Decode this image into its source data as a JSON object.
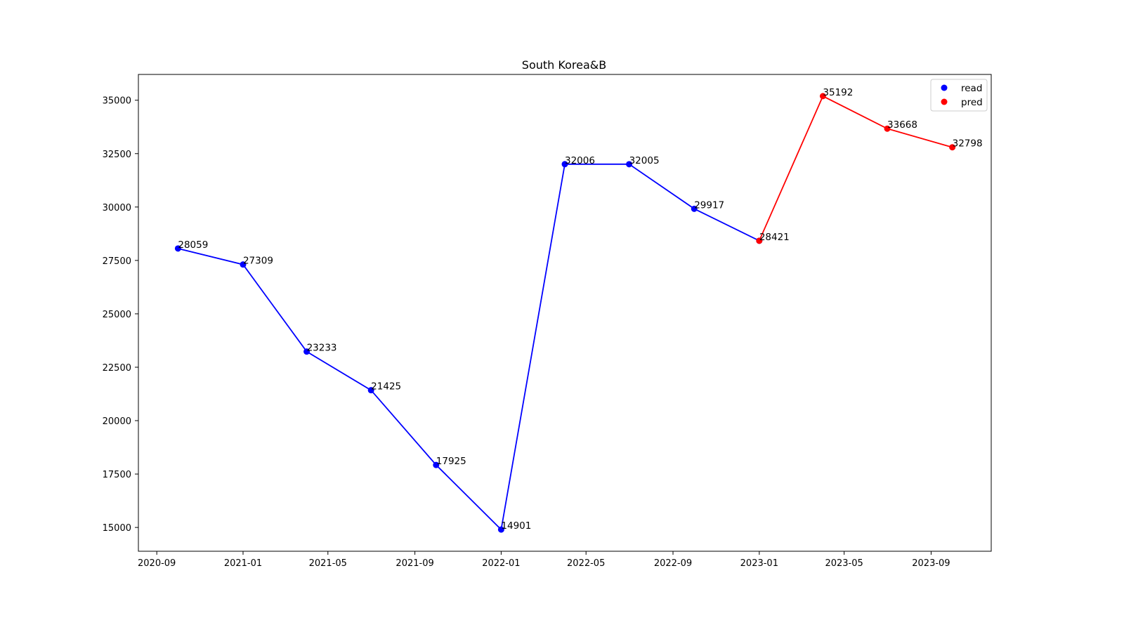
{
  "chart_data": {
    "type": "line",
    "title": "South Korea&B",
    "xlabel": "",
    "ylabel": "",
    "x_ticks": [
      "2020-09",
      "2021-01",
      "2021-05",
      "2021-09",
      "2022-01",
      "2022-05",
      "2022-09",
      "2023-01",
      "2023-05",
      "2023-09"
    ],
    "y_ticks": [
      15000,
      17500,
      20000,
      22500,
      25000,
      27500,
      30000,
      32500,
      35000
    ],
    "xlim": [
      "2020-08-06",
      "2023-11-25"
    ],
    "ylim": [
      13886,
      36207
    ],
    "grid": false,
    "legend_position": "top-right",
    "series": [
      {
        "name": "read",
        "color": "#0000ff",
        "x": [
          "2020-10-01",
          "2021-01-01",
          "2021-04-01",
          "2021-07-01",
          "2021-10-01",
          "2022-01-01",
          "2022-04-01",
          "2022-07-01",
          "2022-10-01",
          "2023-01-01"
        ],
        "values": [
          28059,
          27309,
          23233,
          21425,
          17925,
          14901,
          32006,
          32005,
          29917,
          28421
        ]
      },
      {
        "name": "pred",
        "color": "#ff0000",
        "x": [
          "2023-01-01",
          "2023-04-01",
          "2023-07-01",
          "2023-10-01"
        ],
        "values": [
          28421,
          35192,
          33668,
          32798
        ]
      }
    ]
  }
}
